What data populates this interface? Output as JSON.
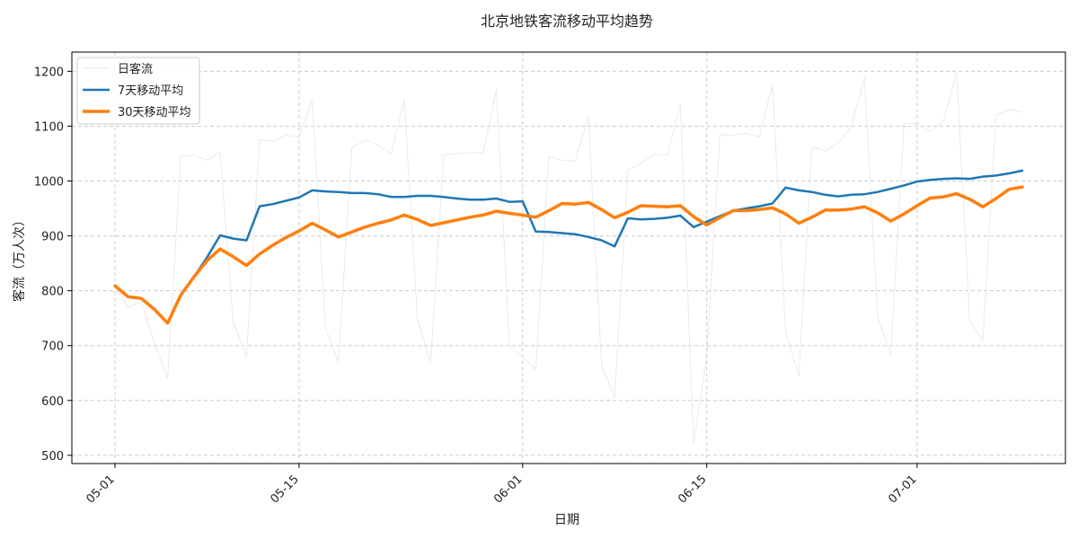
{
  "chart_data": {
    "type": "line",
    "title": "北京地铁客流移动平均趋势",
    "xlabel": "日期",
    "ylabel": "客流（万人次）",
    "ylim": [
      485,
      1235
    ],
    "grid": true,
    "legend_position": "top-left",
    "x_ticks": [
      "05-01",
      "05-15",
      "06-01",
      "06-15",
      "07-01"
    ],
    "y_ticks": [
      500,
      600,
      700,
      800,
      900,
      1000,
      1100,
      1200
    ],
    "x_tick_rotation": -45,
    "x": [
      "05-01",
      "05-02",
      "05-03",
      "05-04",
      "05-05",
      "05-06",
      "05-07",
      "05-08",
      "05-09",
      "05-10",
      "05-11",
      "05-12",
      "05-13",
      "05-14",
      "05-15",
      "05-16",
      "05-17",
      "05-18",
      "05-19",
      "05-20",
      "05-21",
      "05-22",
      "05-23",
      "05-24",
      "05-25",
      "05-26",
      "05-27",
      "05-28",
      "05-29",
      "05-30",
      "05-31",
      "06-01",
      "06-02",
      "06-03",
      "06-04",
      "06-05",
      "06-06",
      "06-07",
      "06-08",
      "06-09",
      "06-10",
      "06-11",
      "06-12",
      "06-13",
      "06-14",
      "06-15",
      "06-16",
      "06-17",
      "06-18",
      "06-19",
      "06-20",
      "06-21",
      "06-22",
      "06-23",
      "06-24",
      "06-25",
      "06-26",
      "06-27",
      "06-28",
      "06-29",
      "06-30",
      "07-01",
      "07-02",
      "07-03",
      "07-04",
      "07-05",
      "07-06",
      "07-07",
      "07-08",
      "07-09"
    ],
    "series": [
      {
        "name": "日客流",
        "color": "#d9d9d9",
        "values": [
          809,
          770,
          780,
          705,
          640,
          1045,
          1047,
          1038,
          1052,
          742,
          680,
          1075,
          1073,
          1083,
          1080,
          1148,
          733,
          670,
          1060,
          1075,
          1066,
          1050,
          1148,
          750,
          668,
          1048,
          1050,
          1051,
          1052,
          1166,
          700,
          680,
          657,
          1045,
          1038,
          1036,
          1118,
          665,
          605,
          1020,
          1032,
          1048,
          1048,
          1140,
          520,
          680,
          1085,
          1083,
          1087,
          1080,
          1176,
          725,
          645,
          1062,
          1055,
          1069,
          1100,
          1188,
          753,
          684,
          1105,
          1105,
          1090,
          1110,
          1198,
          746,
          710,
          1120,
          1130,
          1126
        ]
      },
      {
        "name": "7天移动平均",
        "color": "#1f77b4",
        "values": [
          809,
          789,
          786,
          766,
          741,
          792,
          825,
          861,
          901,
          895,
          892,
          954,
          958,
          964,
          970,
          983,
          981,
          980,
          978,
          978,
          976,
          971,
          971,
          973,
          973,
          971,
          968,
          966,
          966,
          968,
          962,
          963,
          908,
          907,
          905,
          903,
          898,
          892,
          881,
          932,
          930,
          931,
          933,
          937,
          916,
          926,
          936,
          946,
          950,
          954,
          959,
          988,
          983,
          980,
          975,
          972,
          975,
          976,
          980,
          986,
          992,
          999,
          1002,
          1004,
          1005,
          1004,
          1008,
          1010,
          1014,
          1019
        ]
      },
      {
        "name": "30天移动平均",
        "color": "#ff7f0e",
        "values": [
          809,
          789,
          786,
          766,
          741,
          792,
          825,
          855,
          876,
          862,
          846,
          867,
          883,
          897,
          909,
          923,
          911,
          898,
          907,
          916,
          923,
          929,
          938,
          930,
          919,
          924,
          929,
          934,
          938,
          945,
          941,
          938,
          934,
          946,
          959,
          958,
          961,
          948,
          933,
          943,
          955,
          954,
          953,
          955,
          935,
          920,
          933,
          946,
          946,
          948,
          951,
          940,
          923,
          934,
          947,
          947,
          949,
          953,
          942,
          927,
          940,
          955,
          969,
          971,
          977,
          967,
          953,
          968,
          985,
          989
        ]
      }
    ]
  }
}
